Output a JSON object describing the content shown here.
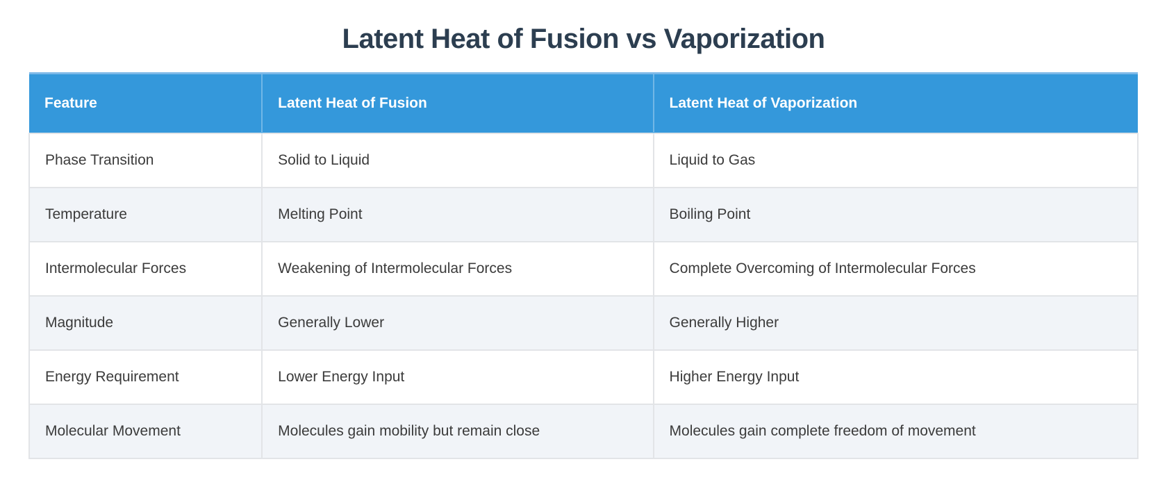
{
  "page": {
    "title": "Latent Heat of Fusion vs Vaporization"
  },
  "table": {
    "columns": [
      "Feature",
      "Latent Heat of Fusion",
      "Latent Heat of Vaporization"
    ],
    "rows": [
      [
        "Phase Transition",
        "Solid to Liquid",
        "Liquid to Gas"
      ],
      [
        "Temperature",
        "Melting Point",
        "Boiling Point"
      ],
      [
        "Intermolecular Forces",
        "Weakening of Intermolecular Forces",
        "Complete Overcoming of Intermolecular Forces"
      ],
      [
        "Magnitude",
        "Generally Lower",
        "Generally Higher"
      ],
      [
        "Energy Requirement",
        "Lower Energy Input",
        "Higher Energy Input"
      ],
      [
        "Molecular Movement",
        "Molecules gain mobility but remain close",
        "Molecules gain complete freedom of movement"
      ]
    ]
  },
  "colors": {
    "title_text": "#2c3e50",
    "header_bg": "#3498db",
    "header_top_border": "#7db9e8",
    "header_text": "#ffffff",
    "row_bg": "#ffffff",
    "row_alt_bg": "#f1f4f8",
    "cell_border": "#e2e4e7",
    "body_text": "#3b3b3b"
  }
}
